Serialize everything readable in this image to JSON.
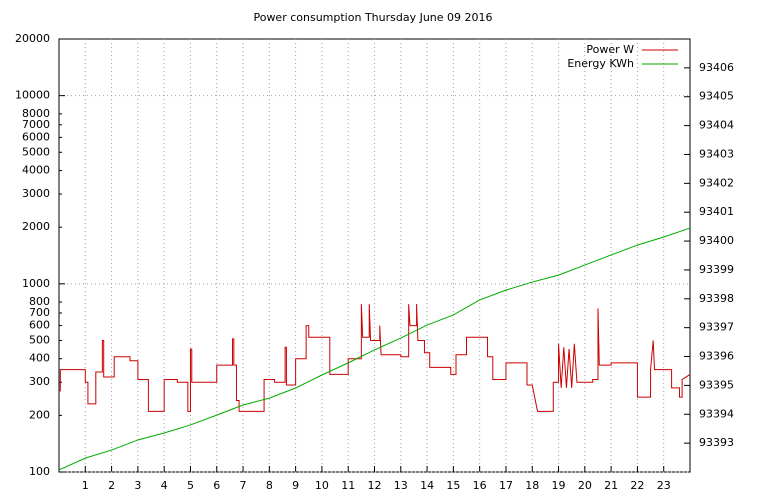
{
  "chart_data": {
    "type": "line",
    "title": "Power consumption Thursday June 09 2016",
    "xlim": [
      0,
      24
    ],
    "xticks": [
      1,
      2,
      3,
      4,
      5,
      6,
      7,
      8,
      9,
      10,
      11,
      12,
      13,
      14,
      15,
      16,
      17,
      18,
      19,
      20,
      21,
      22,
      23
    ],
    "ylim": [
      100,
      20000
    ],
    "ylog": true,
    "yticks": [
      100,
      200,
      300,
      400,
      500,
      600,
      700,
      800,
      1000,
      2000,
      3000,
      4000,
      5000,
      6000,
      7000,
      8000,
      10000,
      20000
    ],
    "y2lim": [
      93392,
      93407
    ],
    "y2ticks": [
      93393,
      93394,
      93395,
      93396,
      93397,
      93398,
      93399,
      93400,
      93401,
      93402,
      93403,
      93404,
      93405,
      93406
    ],
    "grid": true,
    "legend": "top-right",
    "series": [
      {
        "name": "Power W",
        "color": "#cc0000",
        "x": [
          0,
          0.05,
          0.05,
          1.0,
          1.0,
          1.1,
          1.1,
          1.4,
          1.4,
          1.65,
          1.65,
          1.7,
          1.7,
          2.1,
          2.1,
          2.7,
          2.7,
          3.0,
          3.0,
          3.4,
          3.4,
          4.0,
          4.0,
          4.5,
          4.5,
          4.9,
          4.9,
          5.0,
          5.0,
          5.05,
          5.05,
          6.0,
          6.0,
          6.6,
          6.6,
          6.65,
          6.65,
          6.75,
          6.75,
          6.85,
          6.85,
          7.8,
          7.8,
          8.2,
          8.2,
          8.6,
          8.6,
          8.65,
          8.65,
          9.0,
          9.0,
          9.4,
          9.4,
          9.5,
          9.5,
          10.3,
          10.3,
          11.0,
          11.0,
          11.5,
          11.5,
          11.55,
          11.8,
          11.8,
          11.85,
          12.2,
          12.2,
          12.25,
          13.0,
          13.0,
          13.3,
          13.3,
          13.35,
          13.6,
          13.6,
          13.65,
          13.9,
          13.9,
          14.1,
          14.1,
          14.9,
          14.9,
          15.1,
          15.1,
          15.5,
          15.5,
          16.3,
          16.3,
          16.5,
          16.5,
          17.0,
          17.0,
          17.8,
          17.8,
          18.0,
          18.2,
          18.8,
          18.8,
          19.0,
          19.0,
          19.1,
          19.2,
          19.3,
          19.4,
          19.5,
          19.6,
          19.7,
          20.3,
          20.3,
          20.5,
          20.5,
          20.55,
          21.0,
          21.0,
          22.0,
          22.0,
          22.5,
          22.5,
          22.6,
          22.65,
          23.3,
          23.3,
          23.6,
          23.6,
          23.7,
          23.7,
          24.0
        ],
        "values": [
          270,
          270,
          350,
          350,
          300,
          300,
          230,
          230,
          340,
          340,
          500,
          500,
          320,
          320,
          410,
          410,
          390,
          390,
          310,
          310,
          210,
          210,
          310,
          310,
          300,
          300,
          210,
          210,
          450,
          450,
          300,
          300,
          370,
          370,
          510,
          510,
          370,
          370,
          240,
          240,
          210,
          210,
          310,
          310,
          300,
          300,
          460,
          460,
          290,
          290,
          400,
          400,
          600,
          600,
          520,
          520,
          330,
          330,
          400,
          400,
          780,
          520,
          520,
          780,
          500,
          500,
          600,
          420,
          420,
          410,
          410,
          780,
          600,
          600,
          780,
          500,
          500,
          430,
          430,
          360,
          360,
          330,
          330,
          420,
          420,
          520,
          520,
          410,
          410,
          310,
          310,
          380,
          380,
          290,
          290,
          210,
          210,
          300,
          300,
          480,
          280,
          460,
          280,
          450,
          280,
          480,
          300,
          300,
          310,
          310,
          740,
          370,
          370,
          380,
          380,
          250,
          250,
          350,
          500,
          350,
          350,
          280,
          280,
          250,
          250,
          310,
          330
        ]
      },
      {
        "name": "Energy KWh",
        "color": "#00aa00",
        "axis": "y2",
        "x": [
          0,
          1,
          2,
          3,
          4,
          5,
          6,
          7,
          8,
          9,
          10,
          11,
          12,
          13,
          14,
          15,
          16,
          17,
          18,
          19,
          20,
          21,
          22,
          23,
          24
        ],
        "values": [
          93392.07,
          93392.48,
          93392.76,
          93393.11,
          93393.35,
          93393.63,
          93393.97,
          93394.32,
          93394.56,
          93394.91,
          93395.36,
          93395.78,
          93396.23,
          93396.64,
          93397.09,
          93397.44,
          93397.96,
          93398.3,
          93398.58,
          93398.82,
          93399.17,
          93399.52,
          93399.86,
          93400.14,
          93400.45
        ]
      }
    ]
  }
}
